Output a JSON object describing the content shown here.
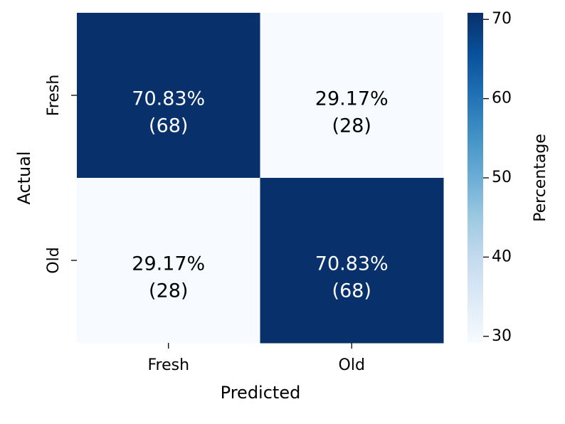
{
  "chart_data": {
    "type": "heatmap",
    "x_label": "Predicted",
    "y_label": "Actual",
    "x_categories": [
      "Fresh",
      "Old"
    ],
    "y_categories": [
      "Fresh",
      "Old"
    ],
    "values": [
      [
        70.83,
        29.17
      ],
      [
        29.17,
        70.83
      ]
    ],
    "value_labels": [
      [
        "70.83%",
        "29.17%"
      ],
      [
        "29.17%",
        "70.83%"
      ]
    ],
    "counts": [
      [
        68,
        28
      ],
      [
        28,
        68
      ]
    ],
    "count_labels": [
      [
        "(68)",
        "(28)"
      ],
      [
        "(28)",
        "(68)"
      ]
    ],
    "colormap": "Blues",
    "colorbar_label": "Percentage",
    "clim": [
      29.17,
      70.83
    ],
    "cticks": [
      30,
      40,
      50,
      60,
      70
    ]
  }
}
